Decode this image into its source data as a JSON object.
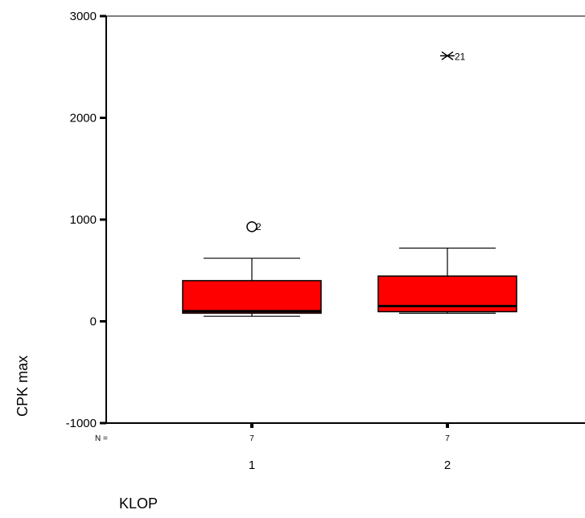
{
  "chart_data": {
    "type": "box",
    "xlabel": "KLOP",
    "ylabel": "CPK max",
    "ylim": [
      -1000,
      3000
    ],
    "yticks": [
      3000,
      2000,
      1000,
      0,
      -1000
    ],
    "n_label": "N =",
    "box_color": "#ff0000",
    "categories": [
      "1",
      "2"
    ],
    "boxes": [
      {
        "category": "1",
        "n": "7",
        "min": 50,
        "q1": 80,
        "median": 100,
        "q3": 400,
        "max": 620,
        "outliers": [
          {
            "value": 930,
            "label": "2",
            "marker": "circle"
          }
        ]
      },
      {
        "category": "2",
        "n": "7",
        "min": 80,
        "q1": 95,
        "median": 150,
        "q3": 445,
        "max": 720,
        "outliers": [
          {
            "value": 2610,
            "label": "21",
            "marker": "star"
          }
        ]
      }
    ]
  }
}
